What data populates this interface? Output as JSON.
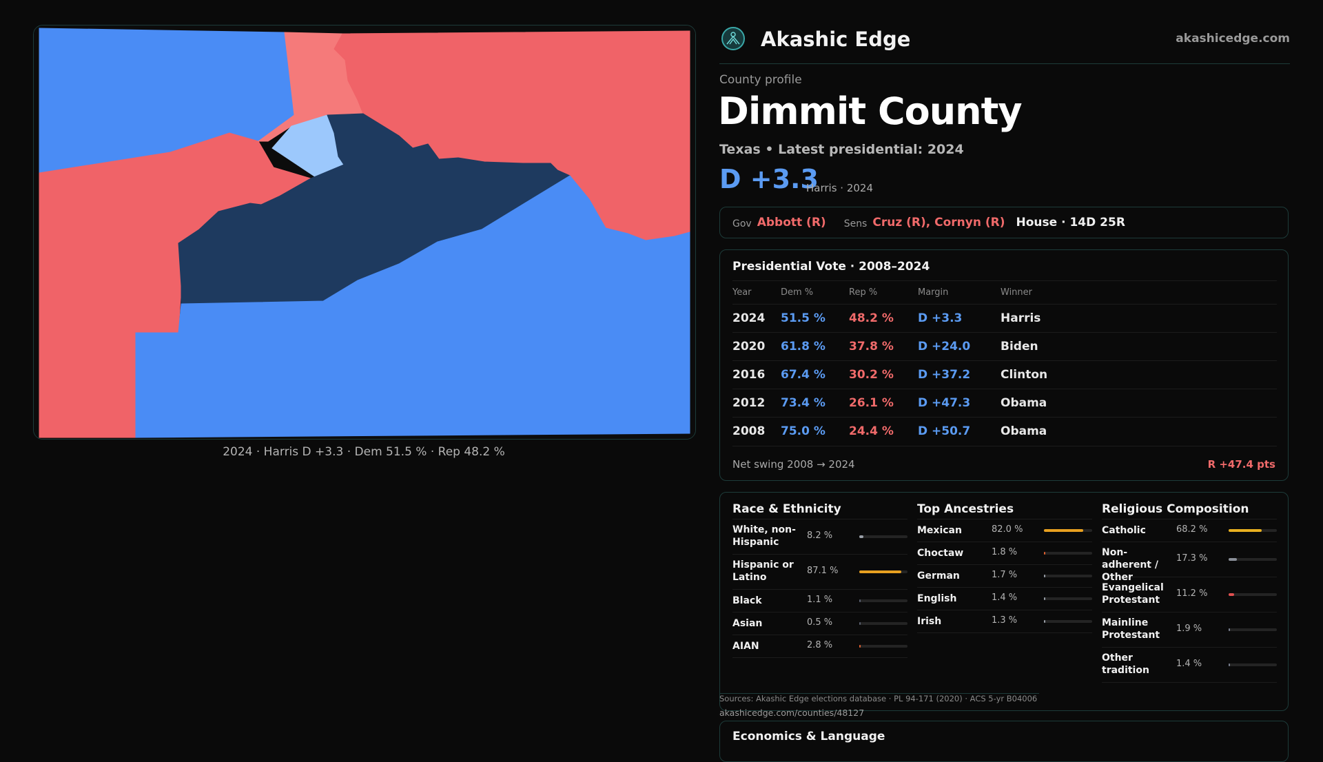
{
  "map": {
    "caption": "2024 · Harris D +3.3 · Dem 51.5 % · Rep 48.2 %",
    "colors": {
      "strong_dem": "#4a8cf5",
      "dark_dem": "#1e3a5f",
      "light_dem": "#9cc8fc",
      "rep": "#f06368",
      "light_rep": "#f57a7a"
    }
  },
  "header": {
    "brand": "Akashic Edge",
    "site": "akashicedge.com"
  },
  "profile": {
    "label": "County profile",
    "county": "Dimmit County",
    "subtitle": "Texas • Latest presidential: 2024",
    "margin": "D +3.3",
    "margin_note": "Harris · 2024"
  },
  "officials": {
    "gov_label": "Gov",
    "gov": "Abbott (R)",
    "sens_label": "Sens",
    "sens": "Cruz (R), Cornyn (R)",
    "house": "House · 14D 25R"
  },
  "presidential": {
    "title": "Presidential Vote · 2008–2024",
    "headers": [
      "Year",
      "Dem %",
      "Rep %",
      "Margin",
      "Winner"
    ],
    "rows": [
      {
        "year": "2024",
        "dem": "51.5 %",
        "rep": "48.2 %",
        "margin": "D +3.3",
        "winner": "Harris"
      },
      {
        "year": "2020",
        "dem": "61.8 %",
        "rep": "37.8 %",
        "margin": "D +24.0",
        "winner": "Biden"
      },
      {
        "year": "2016",
        "dem": "67.4 %",
        "rep": "30.2 %",
        "margin": "D +37.2",
        "winner": "Clinton"
      },
      {
        "year": "2012",
        "dem": "73.4 %",
        "rep": "26.1 %",
        "margin": "D +47.3",
        "winner": "Obama"
      },
      {
        "year": "2008",
        "dem": "75.0 %",
        "rep": "24.4 %",
        "margin": "D +50.7",
        "winner": "Obama"
      }
    ],
    "swing_label": "Net swing 2008 → 2024",
    "swing_value": "R +47.4 pts"
  },
  "demographics": {
    "race": {
      "title": "Race & Ethnicity",
      "rows": [
        {
          "label": "White, non-Hispanic",
          "value": "8.2 %",
          "pct": 8.2,
          "color": "#9aa0a8"
        },
        {
          "label": "Hispanic or Latino",
          "value": "87.1 %",
          "pct": 87.1,
          "color": "#e8a020"
        },
        {
          "label": "Black",
          "value": "1.1 %",
          "pct": 1.1,
          "color": "#5a6070"
        },
        {
          "label": "Asian",
          "value": "0.5 %",
          "pct": 0.5,
          "color": "#5a6070"
        },
        {
          "label": "AIAN",
          "value": "2.8 %",
          "pct": 2.8,
          "color": "#e06030"
        }
      ]
    },
    "ancestry": {
      "title": "Top Ancestries",
      "rows": [
        {
          "label": "Mexican",
          "value": "82.0 %",
          "pct": 82.0,
          "color": "#e8a020"
        },
        {
          "label": "Choctaw",
          "value": "1.8 %",
          "pct": 1.8,
          "color": "#e06030"
        },
        {
          "label": "German",
          "value": "1.7 %",
          "pct": 1.7,
          "color": "#9aa0a8"
        },
        {
          "label": "English",
          "value": "1.4 %",
          "pct": 1.4,
          "color": "#9aa0a8"
        },
        {
          "label": "Irish",
          "value": "1.3 %",
          "pct": 1.3,
          "color": "#9aa0a8"
        }
      ]
    },
    "religion": {
      "title": "Religious Composition",
      "rows": [
        {
          "label": "Catholic",
          "value": "68.2 %",
          "pct": 68.2,
          "color": "#e8b020"
        },
        {
          "label": "Non-adherent / Other",
          "value": "17.3 %",
          "pct": 17.3,
          "color": "#8a8f98"
        },
        {
          "label": "Evangelical Protestant",
          "value": "11.2 %",
          "pct": 11.2,
          "color": "#e05050"
        },
        {
          "label": "Mainline Protestant",
          "value": "1.9 %",
          "pct": 1.9,
          "color": "#7a8090"
        },
        {
          "label": "Other tradition",
          "value": "1.4 %",
          "pct": 1.4,
          "color": "#7a8090"
        }
      ]
    }
  },
  "sources": {
    "text": "Sources: Akashic Edge elections database · PL 94-171 (2020) · ACS 5-yr B04006",
    "url": "akashicedge.com/counties/48127"
  },
  "economics": {
    "title": "Economics & Language"
  }
}
